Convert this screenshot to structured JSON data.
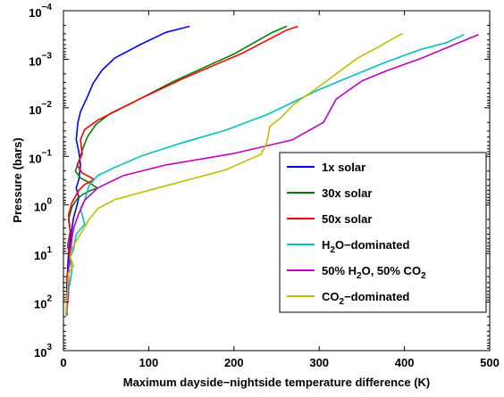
{
  "chart_data": {
    "type": "line",
    "title": "",
    "xlabel": "Maximum dayside−nightside temperature difference (K)",
    "ylabel": "Pressure (bars)",
    "xlim": [
      0,
      500
    ],
    "ylim": [
      0.0001,
      1000
    ],
    "y_scale": "log",
    "y_reversed": true,
    "grid": false,
    "legend_position": "lower-right",
    "x_ticks": [
      0,
      100,
      200,
      300,
      400,
      500
    ],
    "x_tick_labels": [
      "0",
      "100",
      "200",
      "300",
      "400",
      "500"
    ],
    "y_ticks": [
      {
        "value": 0.0001,
        "base": "10",
        "exp": "−4"
      },
      {
        "value": 0.001,
        "base": "10",
        "exp": "−3"
      },
      {
        "value": 0.01,
        "base": "10",
        "exp": "−2"
      },
      {
        "value": 0.1,
        "base": "10",
        "exp": "−1"
      },
      {
        "value": 1,
        "base": "10",
        "exp": "0"
      },
      {
        "value": 10,
        "base": "10",
        "exp": "1"
      },
      {
        "value": 100,
        "base": "10",
        "exp": "2"
      },
      {
        "value": 1000,
        "base": "10",
        "exp": "3"
      }
    ],
    "series": [
      {
        "name": "1x solar",
        "legend_parts": [
          {
            "t": "1x solar"
          }
        ],
        "color": "#0000ff",
        "points": [
          [
            148,
            0.00021
          ],
          [
            120,
            0.00028
          ],
          [
            90,
            0.0005
          ],
          [
            60,
            0.00095
          ],
          [
            45,
            0.0017
          ],
          [
            35,
            0.0031
          ],
          [
            27,
            0.0065
          ],
          [
            20,
            0.012
          ],
          [
            17,
            0.02
          ],
          [
            15,
            0.045
          ],
          [
            18,
            0.08
          ],
          [
            20,
            0.15
          ],
          [
            18,
            0.3
          ],
          [
            15,
            0.45
          ],
          [
            18,
            0.7
          ],
          [
            16,
            1.0
          ],
          [
            12,
            1.8
          ],
          [
            10,
            3.0
          ],
          [
            8,
            5.5
          ],
          [
            6,
            10
          ],
          [
            5,
            20
          ],
          [
            4,
            40
          ],
          [
            4,
            100
          ],
          [
            4,
            190
          ]
        ]
      },
      {
        "name": "30x solar",
        "legend_parts": [
          {
            "t": "30x solar"
          }
        ],
        "color": "#008000",
        "points": [
          [
            262,
            0.00021
          ],
          [
            245,
            0.00028
          ],
          [
            200,
            0.00078
          ],
          [
            130,
            0.0028
          ],
          [
            85,
            0.0072
          ],
          [
            55,
            0.013
          ],
          [
            38,
            0.022
          ],
          [
            28,
            0.04
          ],
          [
            22,
            0.075
          ],
          [
            18,
            0.13
          ],
          [
            14,
            0.2
          ],
          [
            20,
            0.28
          ],
          [
            28,
            0.33
          ],
          [
            40,
            0.45
          ],
          [
            30,
            0.52
          ],
          [
            22,
            0.62
          ],
          [
            16,
            0.75
          ],
          [
            10,
            1.1
          ],
          [
            6,
            2.0
          ],
          [
            8,
            3.5
          ],
          [
            5,
            7
          ],
          [
            8,
            12
          ],
          [
            5,
            25
          ],
          [
            6,
            60
          ],
          [
            3,
            150
          ]
        ]
      },
      {
        "name": "50x solar",
        "legend_parts": [
          {
            "t": "50x solar"
          }
        ],
        "color": "#ff0000",
        "points": [
          [
            275,
            0.00021
          ],
          [
            262,
            0.00025
          ],
          [
            210,
            0.00075
          ],
          [
            140,
            0.0025
          ],
          [
            90,
            0.0065
          ],
          [
            60,
            0.012
          ],
          [
            40,
            0.018
          ],
          [
            25,
            0.028
          ],
          [
            20,
            0.045
          ],
          [
            22,
            0.09
          ],
          [
            16,
            0.15
          ],
          [
            22,
            0.22
          ],
          [
            32,
            0.27
          ],
          [
            36,
            0.3
          ],
          [
            25,
            0.38
          ],
          [
            18,
            0.5
          ],
          [
            10,
            0.9
          ],
          [
            6,
            1.6
          ],
          [
            8,
            3.5
          ],
          [
            5,
            7
          ],
          [
            8,
            14
          ],
          [
            4,
            30
          ],
          [
            6,
            70
          ],
          [
            3,
            180
          ]
        ]
      },
      {
        "name": "H2O-dominated",
        "legend_parts": [
          {
            "t": "H"
          },
          {
            "t": "2",
            "sub": true
          },
          {
            "t": "O−dominated"
          }
        ],
        "color": "#00bfbf",
        "points": [
          [
            470,
            0.00031
          ],
          [
            450,
            0.00045
          ],
          [
            420,
            0.00062
          ],
          [
            375,
            0.0012
          ],
          [
            300,
            0.0042
          ],
          [
            240,
            0.0135
          ],
          [
            190,
            0.029
          ],
          [
            140,
            0.052
          ],
          [
            90,
            0.1
          ],
          [
            60,
            0.17
          ],
          [
            40,
            0.25
          ],
          [
            30,
            0.4
          ],
          [
            25,
            0.8
          ],
          [
            20,
            1.2
          ],
          [
            25,
            2.5
          ],
          [
            15,
            4.0
          ],
          [
            12,
            8.0
          ],
          [
            8,
            12
          ],
          [
            10,
            22
          ],
          [
            8,
            38
          ],
          [
            6,
            55
          ],
          [
            5,
            80
          ],
          [
            3,
            150
          ]
        ]
      },
      {
        "name": "50% H2O, 50% CO2",
        "legend_parts": [
          {
            "t": "50% H"
          },
          {
            "t": "2",
            "sub": true
          },
          {
            "t": "O, 50% CO"
          },
          {
            "t": "2",
            "sub": true
          }
        ],
        "color": "#bf00bf",
        "points": [
          [
            487,
            0.00031
          ],
          [
            420,
            0.00095
          ],
          [
            380,
            0.0017
          ],
          [
            350,
            0.0028
          ],
          [
            320,
            0.0066
          ],
          [
            305,
            0.02
          ],
          [
            268,
            0.046
          ],
          [
            200,
            0.087
          ],
          [
            120,
            0.15
          ],
          [
            70,
            0.25
          ],
          [
            40,
            0.45
          ],
          [
            25,
            0.8
          ],
          [
            18,
            1.5
          ],
          [
            12,
            3.0
          ],
          [
            10,
            5.0
          ],
          [
            8,
            10
          ],
          [
            6,
            20
          ],
          [
            6,
            35
          ],
          [
            5,
            70
          ],
          [
            4,
            150
          ]
        ]
      },
      {
        "name": "CO2-dominated",
        "legend_parts": [
          {
            "t": "CO"
          },
          {
            "t": "2",
            "sub": true
          },
          {
            "t": "−dominated"
          }
        ],
        "color": "#bfbf00",
        "points": [
          [
            398,
            0.00029
          ],
          [
            370,
            0.00055
          ],
          [
            345,
            0.00095
          ],
          [
            320,
            0.002
          ],
          [
            295,
            0.0042
          ],
          [
            270,
            0.0085
          ],
          [
            255,
            0.016
          ],
          [
            242,
            0.024
          ],
          [
            240,
            0.04
          ],
          [
            238,
            0.055
          ],
          [
            232,
            0.09
          ],
          [
            190,
            0.19
          ],
          [
            110,
            0.45
          ],
          [
            60,
            0.78
          ],
          [
            40,
            1.2
          ],
          [
            30,
            2.0
          ],
          [
            22,
            3.5
          ],
          [
            15,
            5.5
          ],
          [
            10,
            8
          ],
          [
            8,
            12
          ],
          [
            12,
            18
          ],
          [
            6,
            25
          ],
          [
            5,
            45
          ],
          [
            4,
            90
          ],
          [
            3,
            190
          ]
        ]
      }
    ]
  }
}
